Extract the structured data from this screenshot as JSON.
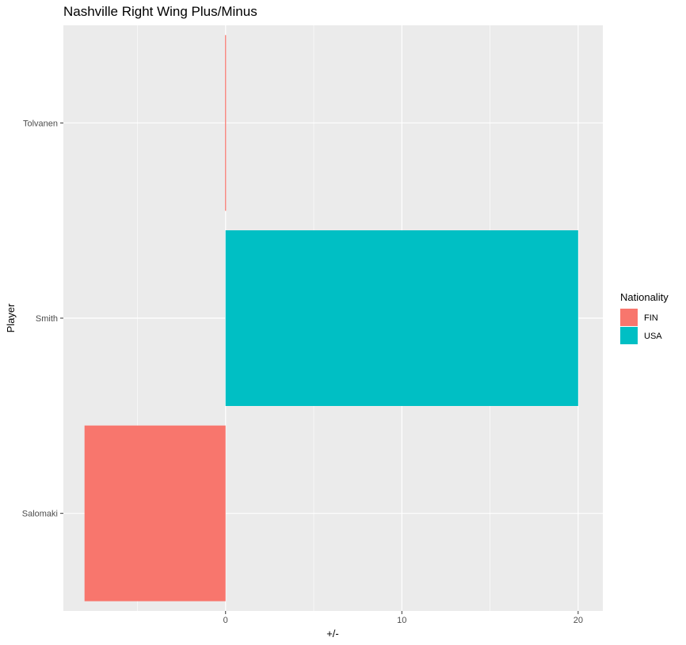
{
  "chart_data": {
    "type": "bar",
    "orientation": "horizontal",
    "title": "Nashville Right Wing Plus/Minus",
    "xlabel": "+/-",
    "ylabel": "Player",
    "categories": [
      "Salomaki",
      "Smith",
      "Tolvanen"
    ],
    "values": [
      -8,
      20,
      0
    ],
    "nationality": [
      "FIN",
      "USA",
      "FIN"
    ],
    "xlim": [
      -9.2,
      21.4
    ],
    "xticks": [
      0,
      10,
      20
    ],
    "grid": true,
    "legend": {
      "title": "Nationality",
      "placement": "right",
      "entries": [
        {
          "label": "FIN",
          "color": "#F8766D"
        },
        {
          "label": "USA",
          "color": "#00BFC4"
        }
      ]
    },
    "colors": {
      "panel_background": "#EBEBEB",
      "grid": "#FFFFFF",
      "FIN": "#F8766D",
      "USA": "#00BFC4"
    }
  }
}
